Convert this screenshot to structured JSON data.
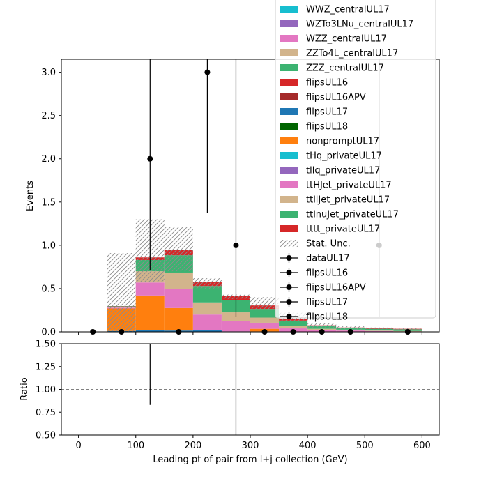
{
  "chart_data": [
    {
      "type": "bar",
      "stacked": true,
      "xlabel": "",
      "ylabel": "Events",
      "xlim": [
        -30,
        630
      ],
      "ylim": [
        0,
        3.15
      ],
      "yticks": [
        0.0,
        0.5,
        1.0,
        1.5,
        2.0,
        2.5,
        3.0
      ],
      "ytick_labels": [
        "0.0",
        "0.5",
        "1.0",
        "1.5",
        "2.0",
        "2.5",
        "3.0"
      ],
      "xticks": [
        0,
        100,
        200,
        300,
        400,
        500,
        600
      ],
      "bin_edges": [
        0,
        50,
        100,
        150,
        200,
        250,
        300,
        350,
        400,
        450,
        500,
        550,
        600
      ],
      "bin_centers": [
        25,
        75,
        125,
        175,
        225,
        275,
        325,
        375,
        425,
        475,
        525,
        575
      ],
      "legend_placement": "upper right",
      "legend": [
        {
          "label": "WWZ_centralUL17",
          "color": "#17becf",
          "kind": "patch"
        },
        {
          "label": "WZTo3LNu_centralUL17",
          "color": "#9467bd",
          "kind": "patch"
        },
        {
          "label": "WZZ_centralUL17",
          "color": "#e377c2",
          "kind": "patch"
        },
        {
          "label": "ZZTo4L_centralUL17",
          "color": "#d2b48c",
          "kind": "patch"
        },
        {
          "label": "ZZZ_centralUL17",
          "color": "#3cb371",
          "kind": "patch"
        },
        {
          "label": "flipsUL16",
          "color": "#d62728",
          "kind": "patch"
        },
        {
          "label": "flipsUL16APV",
          "color": "#a52a2a",
          "kind": "patch"
        },
        {
          "label": "flipsUL17",
          "color": "#1f77b4",
          "kind": "patch"
        },
        {
          "label": "flipsUL18",
          "color": "#006400",
          "kind": "patch"
        },
        {
          "label": "nonpromptUL17",
          "color": "#ff7f0e",
          "kind": "patch"
        },
        {
          "label": "tHq_privateUL17",
          "color": "#17becf",
          "kind": "patch"
        },
        {
          "label": "tllq_privateUL17",
          "color": "#9467bd",
          "kind": "patch"
        },
        {
          "label": "ttHJet_privateUL17",
          "color": "#e377c2",
          "kind": "patch"
        },
        {
          "label": "ttllJet_privateUL17",
          "color": "#d2b48c",
          "kind": "patch"
        },
        {
          "label": "ttlnuJet_privateUL17",
          "color": "#3cb371",
          "kind": "patch"
        },
        {
          "label": "tttt_privateUL17",
          "color": "#d62728",
          "kind": "patch"
        },
        {
          "label": "Stat. Unc.",
          "color": "#808080",
          "kind": "hatch"
        },
        {
          "label": "dataUL17",
          "color": "#000000",
          "kind": "errorbar"
        },
        {
          "label": "flipsUL16",
          "color": "#000000",
          "kind": "errorbar"
        },
        {
          "label": "flipsUL16APV",
          "color": "#000000",
          "kind": "errorbar"
        },
        {
          "label": "flipsUL17",
          "color": "#000000",
          "kind": "errorbar"
        },
        {
          "label": "flipsUL18",
          "color": "#000000",
          "kind": "errorbar"
        }
      ],
      "series": [
        {
          "name": "flipsUL17",
          "color": "#1f77b4",
          "values": [
            0,
            0.01,
            0.02,
            0.015,
            0.02,
            0.005,
            0.005,
            0,
            0,
            0,
            0,
            0
          ]
        },
        {
          "name": "nonpromptUL17",
          "color": "#ff7f0e",
          "values": [
            0,
            0.26,
            0.4,
            0.26,
            0.0,
            0.0,
            0.03,
            0,
            0,
            0,
            0,
            0
          ]
        },
        {
          "name": "ttHJet_privateUL17",
          "color": "#e377c2",
          "values": [
            0,
            0.01,
            0.15,
            0.22,
            0.18,
            0.12,
            0.07,
            0.04,
            0.02,
            0.015,
            0.01,
            0.005
          ]
        },
        {
          "name": "ttllJet_privateUL17",
          "color": "#d2b48c",
          "values": [
            0,
            0.01,
            0.13,
            0.19,
            0.14,
            0.1,
            0.06,
            0.03,
            0.015,
            0.01,
            0.005,
            0.005
          ]
        },
        {
          "name": "ttlnuJet_privateUL17",
          "color": "#3cb371",
          "values": [
            0,
            0.005,
            0.13,
            0.2,
            0.19,
            0.14,
            0.1,
            0.06,
            0.03,
            0.02,
            0.02,
            0.02
          ]
        },
        {
          "name": "tttt_privateUL17",
          "color": "#d62728",
          "values": [
            0,
            0.003,
            0.03,
            0.06,
            0.05,
            0.05,
            0.04,
            0.02,
            0.01,
            0.005,
            0.005,
            0.005
          ]
        }
      ],
      "stat_unc": {
        "low": [
          0,
          0.0,
          0.58,
          0.7,
          0.5,
          0.38,
          0.26,
          0.12,
          0.05,
          0.03,
          0.03,
          0.02
        ],
        "high": [
          0,
          0.91,
          1.3,
          1.21,
          0.62,
          0.43,
          0.4,
          0.22,
          0.1,
          0.07,
          0.05,
          0.04
        ]
      },
      "data_points": {
        "name": "dataUL17",
        "values": [
          0,
          0,
          2,
          0,
          3,
          1,
          0,
          0,
          0,
          0,
          1,
          0
        ],
        "err_low": [
          0,
          0,
          1.29,
          0,
          1.63,
          0.83,
          0,
          0,
          0,
          0,
          0.83,
          0
        ],
        "err_high": [
          0,
          0,
          2.64,
          0,
          2.92,
          2.3,
          0,
          0,
          0,
          0,
          2.3,
          0
        ]
      }
    },
    {
      "type": "scatter",
      "xlabel": "Leading pt of pair from l+j collection (GeV)",
      "ylabel": "Ratio",
      "xlim": [
        -30,
        630
      ],
      "ylim": [
        0.5,
        1.5
      ],
      "yticks": [
        0.5,
        0.75,
        1.0,
        1.25,
        1.5
      ],
      "ytick_labels": [
        "0.50",
        "0.75",
        "1.00",
        "1.25",
        "1.50"
      ],
      "xticks": [
        0,
        100,
        200,
        300,
        400,
        500,
        600
      ],
      "xtick_labels": [
        "0",
        "100",
        "200",
        "300",
        "400",
        "500",
        "600"
      ],
      "reference_line": 1.0,
      "ratio_errorbars": [
        {
          "x": 125,
          "low": 0.83,
          "high": 1.5
        },
        {
          "x": 275,
          "low": 0.5,
          "high": 1.5
        }
      ]
    }
  ]
}
